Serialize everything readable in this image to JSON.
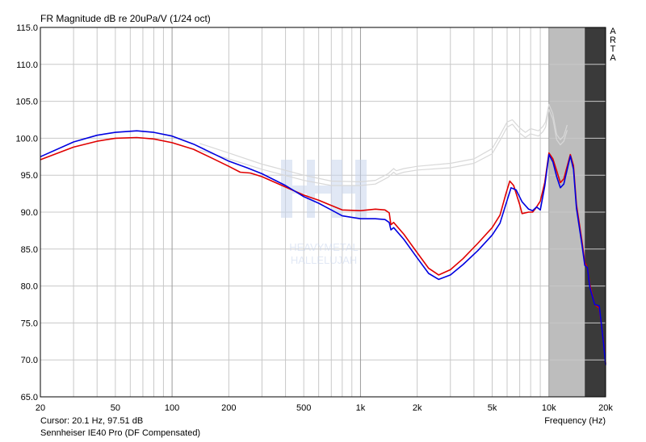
{
  "title": "FR Magnitude dB re 20uPa/V (1/24 oct)",
  "cursor_readout": "Cursor: 20.1 Hz, 97.51 dB",
  "device_label": "Sennheiser IE40 Pro (DF Compensated)",
  "brand_letters": [
    "A",
    "R",
    "T",
    "A"
  ],
  "watermark_text": [
    "HEAVYMETAL",
    "HALLELUJAH"
  ],
  "colors": {
    "series_red": "#e00000",
    "series_blue": "#0000e0",
    "reference": "#d8d8d8",
    "shade_light": "#bdbdbd",
    "shade_dark": "#3a3a3a",
    "grid": "#c8c8c8",
    "watermark": "#c9d6ee"
  },
  "chart_data": {
    "type": "line",
    "title": "FR Magnitude dB re 20uPa/V (1/24 oct)",
    "xlabel": "Frequency (Hz)",
    "ylabel": "",
    "xscale": "log",
    "xlim": [
      20,
      20000
    ],
    "ylim": [
      65,
      115
    ],
    "grid": true,
    "x_ticks": [
      20,
      50,
      100,
      200,
      500,
      1000,
      2000,
      5000,
      10000,
      20000
    ],
    "x_tick_labels": [
      "20",
      "50",
      "100",
      "200",
      "500",
      "1k",
      "2k",
      "5k",
      "10k",
      "20k"
    ],
    "y_ticks": [
      65,
      70,
      75,
      80,
      85,
      90,
      95,
      100,
      105,
      110,
      115
    ],
    "y_tick_labels": [
      "65.0",
      "70.0",
      "75.0",
      "80.0",
      "85.0",
      "90.0",
      "95.0",
      "100.0",
      "105.0",
      "110.0",
      "115.0"
    ],
    "shaded_bands": [
      {
        "from": 10000,
        "to": 15500,
        "shade": "light"
      },
      {
        "from": 15500,
        "to": 20000,
        "shade": "dark"
      }
    ],
    "series": [
      {
        "color": "red",
        "points": [
          [
            20,
            97.1
          ],
          [
            30,
            98.8
          ],
          [
            40,
            99.6
          ],
          [
            50,
            100.0
          ],
          [
            65,
            100.1
          ],
          [
            80,
            99.9
          ],
          [
            100,
            99.4
          ],
          [
            130,
            98.5
          ],
          [
            160,
            97.4
          ],
          [
            200,
            96.2
          ],
          [
            230,
            95.4
          ],
          [
            260,
            95.3
          ],
          [
            300,
            94.8
          ],
          [
            400,
            93.4
          ],
          [
            500,
            92.3
          ],
          [
            600,
            91.6
          ],
          [
            700,
            90.9
          ],
          [
            800,
            90.3
          ],
          [
            1000,
            90.2
          ],
          [
            1200,
            90.4
          ],
          [
            1350,
            90.3
          ],
          [
            1420,
            89.9
          ],
          [
            1450,
            88.3
          ],
          [
            1500,
            88.6
          ],
          [
            1700,
            87.0
          ],
          [
            2000,
            84.5
          ],
          [
            2300,
            82.4
          ],
          [
            2600,
            81.5
          ],
          [
            3000,
            82.2
          ],
          [
            3500,
            83.7
          ],
          [
            4200,
            85.8
          ],
          [
            5000,
            87.9
          ],
          [
            5500,
            89.6
          ],
          [
            5900,
            92.4
          ],
          [
            6200,
            94.2
          ],
          [
            6500,
            93.6
          ],
          [
            7000,
            91.0
          ],
          [
            7200,
            89.8
          ],
          [
            7800,
            90.0
          ],
          [
            8200,
            90.0
          ],
          [
            8500,
            90.5
          ],
          [
            9000,
            91.5
          ],
          [
            9500,
            94.0
          ],
          [
            10000,
            98.0
          ],
          [
            10500,
            97.2
          ],
          [
            11000,
            95.6
          ],
          [
            11500,
            94.0
          ],
          [
            12000,
            94.5
          ],
          [
            13000,
            97.8
          ],
          [
            13500,
            96.3
          ],
          [
            14000,
            91.0
          ],
          [
            15000,
            86.0
          ],
          [
            15500,
            83.2
          ],
          [
            16000,
            82.5
          ],
          [
            16500,
            80.2
          ],
          [
            17500,
            77.5
          ],
          [
            18500,
            77.0
          ],
          [
            19500,
            72.5
          ],
          [
            20000,
            69.5
          ]
        ]
      },
      {
        "color": "blue",
        "points": [
          [
            20,
            97.5
          ],
          [
            30,
            99.5
          ],
          [
            40,
            100.4
          ],
          [
            50,
            100.8
          ],
          [
            65,
            101.0
          ],
          [
            80,
            100.8
          ],
          [
            100,
            100.3
          ],
          [
            130,
            99.2
          ],
          [
            160,
            98.1
          ],
          [
            200,
            96.9
          ],
          [
            250,
            96.0
          ],
          [
            300,
            95.2
          ],
          [
            400,
            93.6
          ],
          [
            500,
            92.1
          ],
          [
            600,
            91.2
          ],
          [
            700,
            90.3
          ],
          [
            800,
            89.5
          ],
          [
            1000,
            89.1
          ],
          [
            1200,
            89.1
          ],
          [
            1350,
            89.0
          ],
          [
            1420,
            88.6
          ],
          [
            1450,
            87.6
          ],
          [
            1500,
            87.9
          ],
          [
            1700,
            86.3
          ],
          [
            2000,
            83.8
          ],
          [
            2300,
            81.7
          ],
          [
            2600,
            80.9
          ],
          [
            3000,
            81.5
          ],
          [
            3500,
            82.9
          ],
          [
            4200,
            84.8
          ],
          [
            5000,
            86.9
          ],
          [
            5500,
            88.5
          ],
          [
            5900,
            91.0
          ],
          [
            6300,
            93.3
          ],
          [
            6700,
            93.0
          ],
          [
            7200,
            91.4
          ],
          [
            7800,
            90.4
          ],
          [
            8200,
            90.2
          ],
          [
            8600,
            90.7
          ],
          [
            9000,
            90.3
          ],
          [
            9500,
            93.5
          ],
          [
            10000,
            97.8
          ],
          [
            10500,
            96.8
          ],
          [
            11000,
            94.8
          ],
          [
            11500,
            93.3
          ],
          [
            12000,
            93.8
          ],
          [
            13000,
            97.6
          ],
          [
            13500,
            95.8
          ],
          [
            14000,
            90.5
          ],
          [
            15000,
            85.5
          ],
          [
            15500,
            82.8
          ],
          [
            16000,
            82.5
          ],
          [
            16500,
            79.8
          ],
          [
            17500,
            77.5
          ],
          [
            18500,
            77.3
          ],
          [
            19500,
            72.3
          ],
          [
            20000,
            69.3
          ]
        ]
      },
      {
        "color": "reference",
        "points": [
          [
            140,
            99.3
          ],
          [
            200,
            98.0
          ],
          [
            300,
            96.5
          ],
          [
            500,
            95.0
          ],
          [
            700,
            94.2
          ],
          [
            1000,
            94.1
          ],
          [
            1200,
            94.3
          ],
          [
            1400,
            95.2
          ],
          [
            1500,
            95.9
          ],
          [
            1550,
            95.6
          ],
          [
            1700,
            95.9
          ],
          [
            2000,
            96.2
          ],
          [
            3000,
            96.6
          ],
          [
            4000,
            97.2
          ],
          [
            5000,
            98.6
          ],
          [
            5500,
            100.4
          ],
          [
            6000,
            102.2
          ],
          [
            6400,
            102.5
          ],
          [
            7000,
            101.4
          ],
          [
            7500,
            100.8
          ],
          [
            8000,
            101.3
          ],
          [
            8800,
            101.0
          ],
          [
            9300,
            101.6
          ],
          [
            9600,
            102.2
          ],
          [
            10000,
            104.6
          ],
          [
            10500,
            103.3
          ],
          [
            11000,
            100.5
          ],
          [
            11500,
            99.8
          ],
          [
            12000,
            100.3
          ],
          [
            12500,
            101.8
          ]
        ]
      },
      {
        "color": "reference",
        "points": [
          [
            140,
            98.4
          ],
          [
            200,
            97.2
          ],
          [
            300,
            95.8
          ],
          [
            500,
            94.3
          ],
          [
            700,
            93.6
          ],
          [
            1000,
            93.6
          ],
          [
            1200,
            93.8
          ],
          [
            1400,
            94.7
          ],
          [
            1500,
            95.4
          ],
          [
            1550,
            95.1
          ],
          [
            1700,
            95.4
          ],
          [
            2000,
            95.7
          ],
          [
            3000,
            96.0
          ],
          [
            4000,
            96.6
          ],
          [
            5000,
            97.9
          ],
          [
            5500,
            99.7
          ],
          [
            6000,
            101.5
          ],
          [
            6400,
            101.9
          ],
          [
            7000,
            100.7
          ],
          [
            7500,
            100.1
          ],
          [
            8000,
            100.6
          ],
          [
            8800,
            100.3
          ],
          [
            9300,
            100.9
          ],
          [
            9600,
            101.5
          ],
          [
            10000,
            103.9
          ],
          [
            10500,
            102.6
          ],
          [
            11000,
            99.8
          ],
          [
            11500,
            99.1
          ],
          [
            12000,
            99.6
          ],
          [
            12500,
            101.1
          ]
        ]
      }
    ]
  }
}
